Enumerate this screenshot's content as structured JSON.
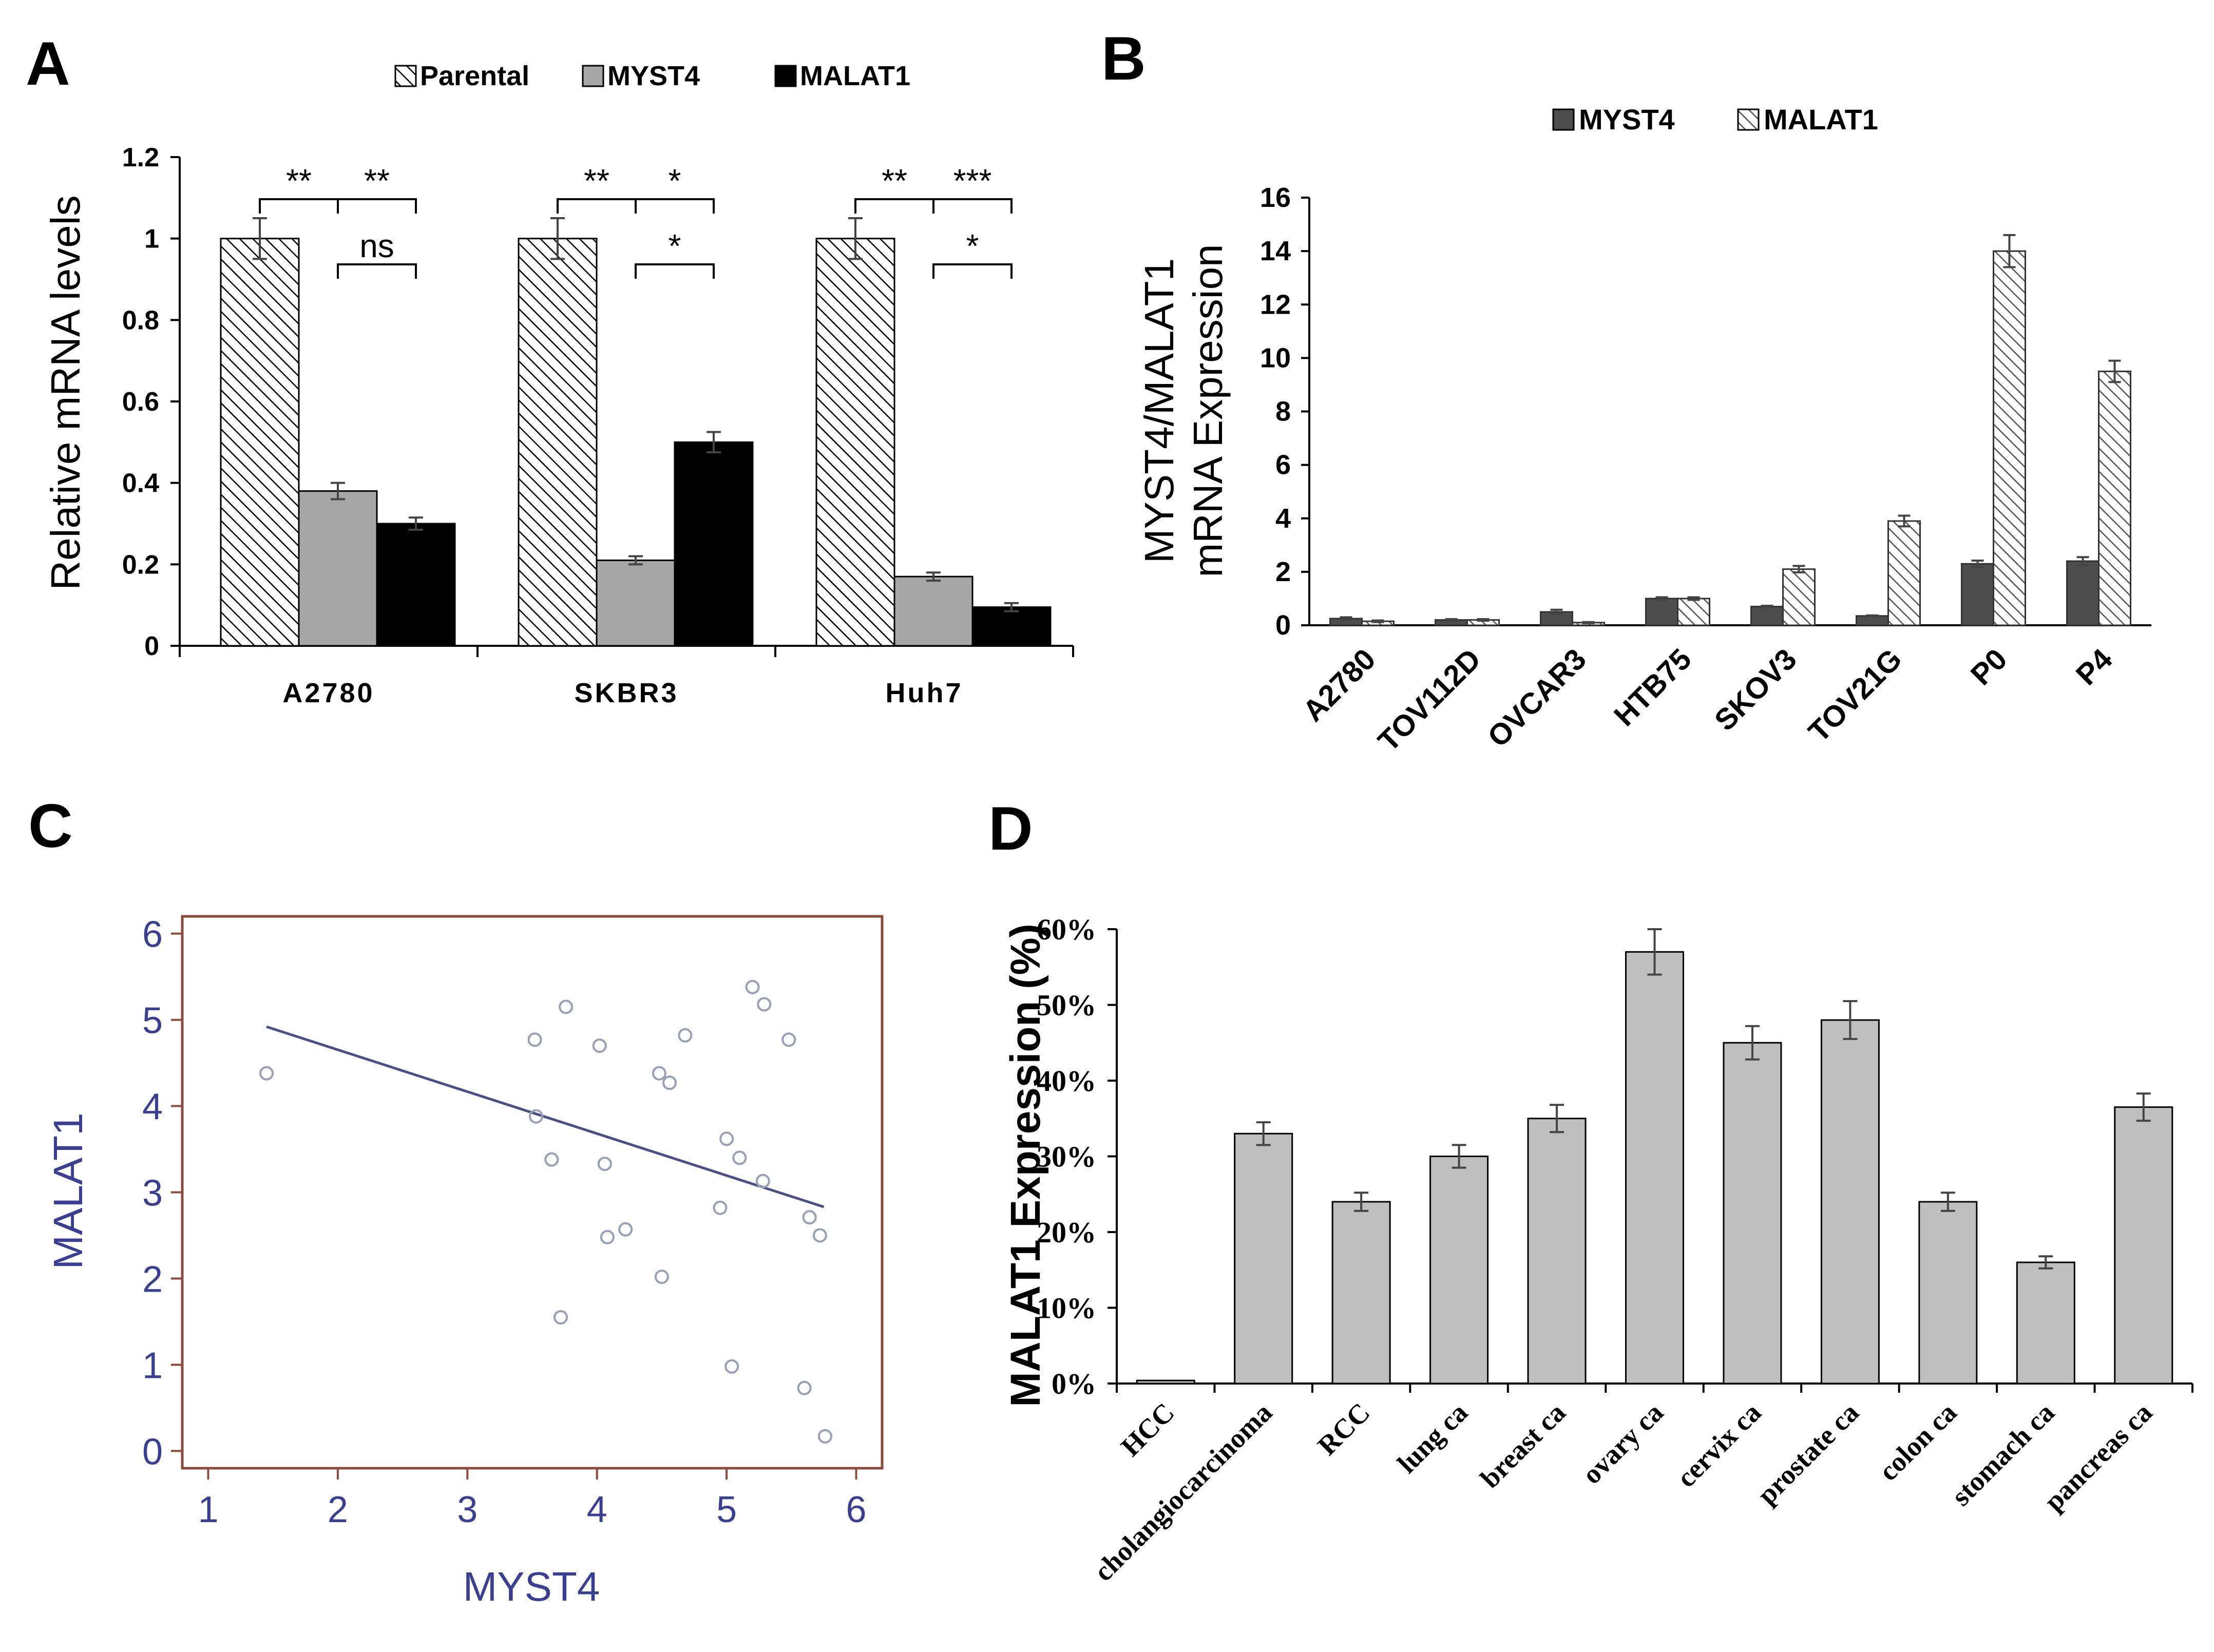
{
  "chart_data": [
    {
      "panel": "A",
      "type": "bar",
      "ylabel": "Relative mRNA levels",
      "xlabel": "",
      "ylim": [
        0,
        1.2
      ],
      "yticks": [
        "0",
        "0.2",
        "0.4",
        "0.6",
        "0.8",
        "1",
        "1.2"
      ],
      "categories": [
        "A2780",
        "SKBR3",
        "Huh7"
      ],
      "legend_position": "top",
      "series": [
        {
          "name": "Parental",
          "values": [
            1.0,
            1.0,
            1.0
          ],
          "errors": [
            0.05,
            0.05,
            0.05
          ],
          "pattern": "hatch",
          "color": "#ffffff"
        },
        {
          "name": "MYST4",
          "values": [
            0.38,
            0.21,
            0.17
          ],
          "errors": [
            0.02,
            0.01,
            0.01
          ],
          "pattern": "solid",
          "color": "#a6a6a6"
        },
        {
          "name": "MALAT1",
          "values": [
            0.3,
            0.5,
            0.095
          ],
          "errors": [
            0.015,
            0.025,
            0.01
          ],
          "pattern": "solid",
          "color": "#000000"
        }
      ],
      "annotations": [
        {
          "group": 0,
          "from": 0,
          "to": 1,
          "label": "**",
          "level": 0
        },
        {
          "group": 0,
          "from": 1,
          "to": 2,
          "label": "**",
          "level": 0
        },
        {
          "group": 0,
          "from": 1,
          "to": 2,
          "label": "ns",
          "level": 1
        },
        {
          "group": 1,
          "from": 0,
          "to": 1,
          "label": "**",
          "level": 0
        },
        {
          "group": 1,
          "from": 1,
          "to": 2,
          "label": "*",
          "level": 0
        },
        {
          "group": 1,
          "from": 1,
          "to": 2,
          "label": "*",
          "level": 1
        },
        {
          "group": 2,
          "from": 0,
          "to": 1,
          "label": "**",
          "level": 0
        },
        {
          "group": 2,
          "from": 1,
          "to": 2,
          "label": "***",
          "level": 0
        },
        {
          "group": 2,
          "from": 1,
          "to": 2,
          "label": "*",
          "level": 1
        }
      ]
    },
    {
      "panel": "B",
      "type": "bar",
      "ylabel_line1": "MYST4/MALAT1",
      "ylabel_line2": "mRNA  Expression",
      "xlabel": "",
      "ylim": [
        0,
        16
      ],
      "yticks": [
        "0",
        "2",
        "4",
        "6",
        "8",
        "10",
        "12",
        "14",
        "16"
      ],
      "categories": [
        "A2780",
        "TOV112D",
        "OVCAR3",
        "HTB75",
        "SKOV3",
        "TOV21G",
        "P0",
        "P4"
      ],
      "legend_position": "top",
      "series": [
        {
          "name": "MYST4",
          "values": [
            0.25,
            0.2,
            0.5,
            1.0,
            0.7,
            0.35,
            2.3,
            2.4
          ],
          "errors": [
            0.05,
            0.03,
            0.08,
            0.05,
            0.03,
            0.02,
            0.12,
            0.15
          ],
          "pattern": "solid",
          "color": "#4d4d4d"
        },
        {
          "name": "MALAT1",
          "values": [
            0.15,
            0.2,
            0.1,
            1.0,
            2.1,
            3.9,
            14.0,
            9.5
          ],
          "errors": [
            0.03,
            0.03,
            0.02,
            0.05,
            0.12,
            0.2,
            0.6,
            0.4
          ],
          "pattern": "hatch",
          "color": "#ffffff"
        }
      ]
    },
    {
      "panel": "C",
      "type": "scatter",
      "xlabel": "MYST4",
      "ylabel": "MALAT1",
      "xlim": [
        0.8,
        6.2
      ],
      "ylim": [
        -0.2,
        6.2
      ],
      "xticks": [
        "1",
        "2",
        "3",
        "4",
        "5",
        "6"
      ],
      "yticks": [
        "0",
        "1",
        "2",
        "3",
        "4",
        "5",
        "6"
      ],
      "points": [
        {
          "x": 1.45,
          "y": 4.38
        },
        {
          "x": 3.52,
          "y": 4.77
        },
        {
          "x": 3.53,
          "y": 3.88
        },
        {
          "x": 3.65,
          "y": 3.38
        },
        {
          "x": 3.72,
          "y": 1.55
        },
        {
          "x": 3.76,
          "y": 5.15
        },
        {
          "x": 4.02,
          "y": 4.7
        },
        {
          "x": 4.06,
          "y": 3.33
        },
        {
          "x": 4.08,
          "y": 2.48
        },
        {
          "x": 4.22,
          "y": 2.57
        },
        {
          "x": 4.48,
          "y": 4.38
        },
        {
          "x": 4.5,
          "y": 2.02
        },
        {
          "x": 4.56,
          "y": 4.27
        },
        {
          "x": 4.68,
          "y": 4.82
        },
        {
          "x": 4.95,
          "y": 2.82
        },
        {
          "x": 5.0,
          "y": 3.62
        },
        {
          "x": 5.04,
          "y": 0.98
        },
        {
          "x": 5.1,
          "y": 3.4
        },
        {
          "x": 5.2,
          "y": 5.38
        },
        {
          "x": 5.28,
          "y": 3.13
        },
        {
          "x": 5.29,
          "y": 5.18
        },
        {
          "x": 5.48,
          "y": 4.77
        },
        {
          "x": 5.6,
          "y": 0.73
        },
        {
          "x": 5.64,
          "y": 2.71
        },
        {
          "x": 5.72,
          "y": 2.5
        },
        {
          "x": 5.76,
          "y": 0.17
        }
      ],
      "regression_line": {
        "x": [
          1.45,
          5.75
        ],
        "y": [
          4.92,
          2.83
        ]
      },
      "frame_color": "#8b4a3c",
      "label_color": "#3a3f8f",
      "point_color": "#9aa0b4"
    },
    {
      "panel": "D",
      "type": "bar",
      "ylabel": "MALAT1 Expression (%)",
      "xlabel": "",
      "ylim": [
        0,
        60
      ],
      "yticks": [
        "0%",
        "10%",
        "20%",
        "30%",
        "40%",
        "50%",
        "60%"
      ],
      "categories": [
        "HCC",
        "cholangiocarcinoma",
        "RCC",
        "lung ca",
        "breast ca",
        "ovary ca",
        "cervix ca",
        "prostate ca",
        "colon ca",
        "stomach ca",
        "pancreas ca"
      ],
      "series": [
        {
          "name": "MALAT1",
          "values": [
            0.4,
            33,
            24,
            30,
            35,
            57,
            45,
            48,
            24,
            16,
            36.5
          ],
          "errors": [
            0,
            1.5,
            1.2,
            1.5,
            1.8,
            3,
            2.2,
            2.5,
            1.2,
            0.8,
            1.8
          ],
          "color": "#bfbfbf"
        }
      ]
    }
  ],
  "panels": {
    "a": "A",
    "b": "B",
    "c": "C",
    "d": "D"
  }
}
